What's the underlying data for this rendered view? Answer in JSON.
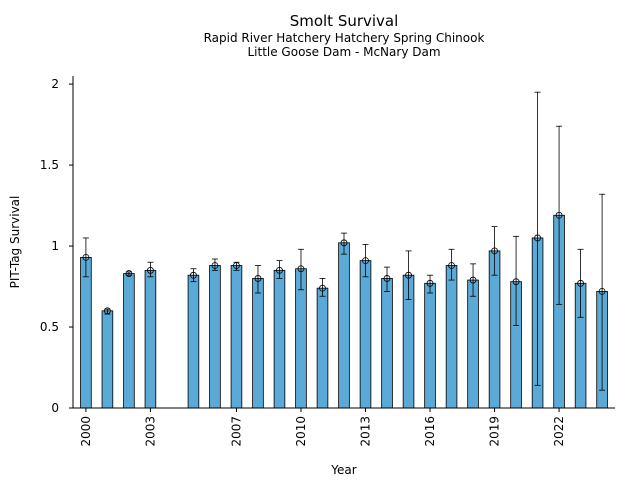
{
  "titles": {
    "title": "Smolt Survival",
    "subtitle1": "Rapid River Hatchery Hatchery Spring Chinook",
    "subtitle2": "Little Goose Dam - McNary Dam"
  },
  "chart_data": {
    "type": "bar",
    "xlabel": "Year",
    "ylabel": "PIT-Tag Survival",
    "ylim": [
      0,
      2.05
    ],
    "yticks": [
      0,
      0.5,
      1,
      1.5,
      2
    ],
    "ytick_labels": [
      "0",
      "0.5",
      "1",
      "1.5",
      "2"
    ],
    "xticks": [
      2000,
      2003,
      2007,
      2010,
      2013,
      2016,
      2019,
      2022
    ],
    "xtick_labels": [
      "2000",
      "2003",
      "2007",
      "2010",
      "2013",
      "2016",
      "2019",
      "2022"
    ],
    "xlim": [
      1999.4,
      2024.6
    ],
    "grid": false,
    "bar_color": "#5aa9d6",
    "bars": [
      {
        "year": 2000,
        "value": 0.93,
        "lower": 0.81,
        "upper": 1.05
      },
      {
        "year": 2001,
        "value": 0.6,
        "lower": 0.58,
        "upper": 0.61
      },
      {
        "year": 2002,
        "value": 0.83,
        "lower": 0.82,
        "upper": 0.84
      },
      {
        "year": 2003,
        "value": 0.85,
        "lower": 0.81,
        "upper": 0.9
      },
      {
        "year": 2005,
        "value": 0.82,
        "lower": 0.78,
        "upper": 0.86
      },
      {
        "year": 2006,
        "value": 0.88,
        "lower": 0.85,
        "upper": 0.92
      },
      {
        "year": 2007,
        "value": 0.88,
        "lower": 0.85,
        "upper": 0.9
      },
      {
        "year": 2008,
        "value": 0.8,
        "lower": 0.71,
        "upper": 0.88
      },
      {
        "year": 2009,
        "value": 0.85,
        "lower": 0.8,
        "upper": 0.91
      },
      {
        "year": 2010,
        "value": 0.86,
        "lower": 0.73,
        "upper": 0.98
      },
      {
        "year": 2011,
        "value": 0.74,
        "lower": 0.69,
        "upper": 0.8
      },
      {
        "year": 2012,
        "value": 1.02,
        "lower": 0.95,
        "upper": 1.08
      },
      {
        "year": 2013,
        "value": 0.91,
        "lower": 0.81,
        "upper": 1.01
      },
      {
        "year": 2014,
        "value": 0.8,
        "lower": 0.72,
        "upper": 0.87
      },
      {
        "year": 2015,
        "value": 0.82,
        "lower": 0.67,
        "upper": 0.97
      },
      {
        "year": 2016,
        "value": 0.77,
        "lower": 0.71,
        "upper": 0.82
      },
      {
        "year": 2017,
        "value": 0.88,
        "lower": 0.79,
        "upper": 0.98
      },
      {
        "year": 2018,
        "value": 0.79,
        "lower": 0.69,
        "upper": 0.89
      },
      {
        "year": 2019,
        "value": 0.97,
        "lower": 0.82,
        "upper": 1.12
      },
      {
        "year": 2020,
        "value": 0.78,
        "lower": 0.51,
        "upper": 1.06
      },
      {
        "year": 2021,
        "value": 1.05,
        "lower": 0.14,
        "upper": 1.95
      },
      {
        "year": 2022,
        "value": 1.19,
        "lower": 0.64,
        "upper": 1.74
      },
      {
        "year": 2023,
        "value": 0.77,
        "lower": 0.56,
        "upper": 0.98
      },
      {
        "year": 2024,
        "value": 0.72,
        "lower": 0.11,
        "upper": 1.32
      }
    ]
  }
}
